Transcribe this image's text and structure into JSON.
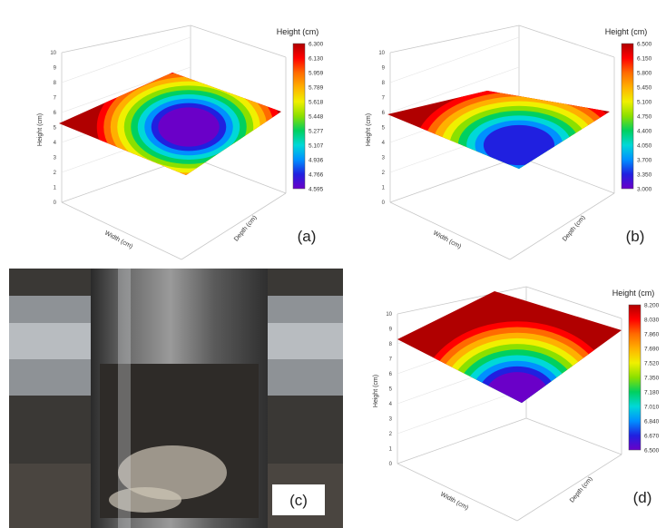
{
  "panels": [
    {
      "label": "(a)",
      "colorbar": {
        "title": "Height (cm)",
        "ticks": [
          "6.300",
          "6.130",
          "5.959",
          "5.789",
          "5.618",
          "5.448",
          "5.277",
          "5.107",
          "4.936",
          "4.766",
          "4.595"
        ]
      },
      "axes": {
        "z_label": "Height (cm)",
        "x_label": "Width (cm)",
        "y_label": "Depth (cm)",
        "z_ticks": [
          "0",
          "1",
          "2",
          "3",
          "4",
          "5",
          "6",
          "7",
          "8",
          "9",
          "10"
        ]
      }
    },
    {
      "label": "(b)",
      "colorbar": {
        "title": "Height (cm)",
        "ticks": [
          "6.500",
          "6.150",
          "5.800",
          "5.450",
          "5.100",
          "4.750",
          "4.400",
          "4.050",
          "3.700",
          "3.350",
          "3.000"
        ]
      },
      "axes": {
        "z_label": "Height (cm)",
        "x_label": "Width (cm)",
        "y_label": "Depth (cm)",
        "z_ticks": [
          "0",
          "1",
          "2",
          "3",
          "4",
          "5",
          "6",
          "7",
          "8",
          "9",
          "10"
        ]
      }
    },
    {
      "label": "(c)"
    },
    {
      "label": "(d)",
      "colorbar": {
        "title": "Height (cm)",
        "ticks": [
          "8.200",
          "8.030",
          "7.860",
          "7.690",
          "7.520",
          "7.350",
          "7.180",
          "7.010",
          "6.840",
          "6.670",
          "6.500"
        ]
      },
      "axes": {
        "z_label": "Height (cm)",
        "x_label": "Width (cm)",
        "y_label": "Depth (cm)",
        "z_ticks": [
          "0",
          "1",
          "2",
          "3",
          "4",
          "5",
          "6",
          "7",
          "8",
          "9",
          "10"
        ]
      }
    }
  ]
}
